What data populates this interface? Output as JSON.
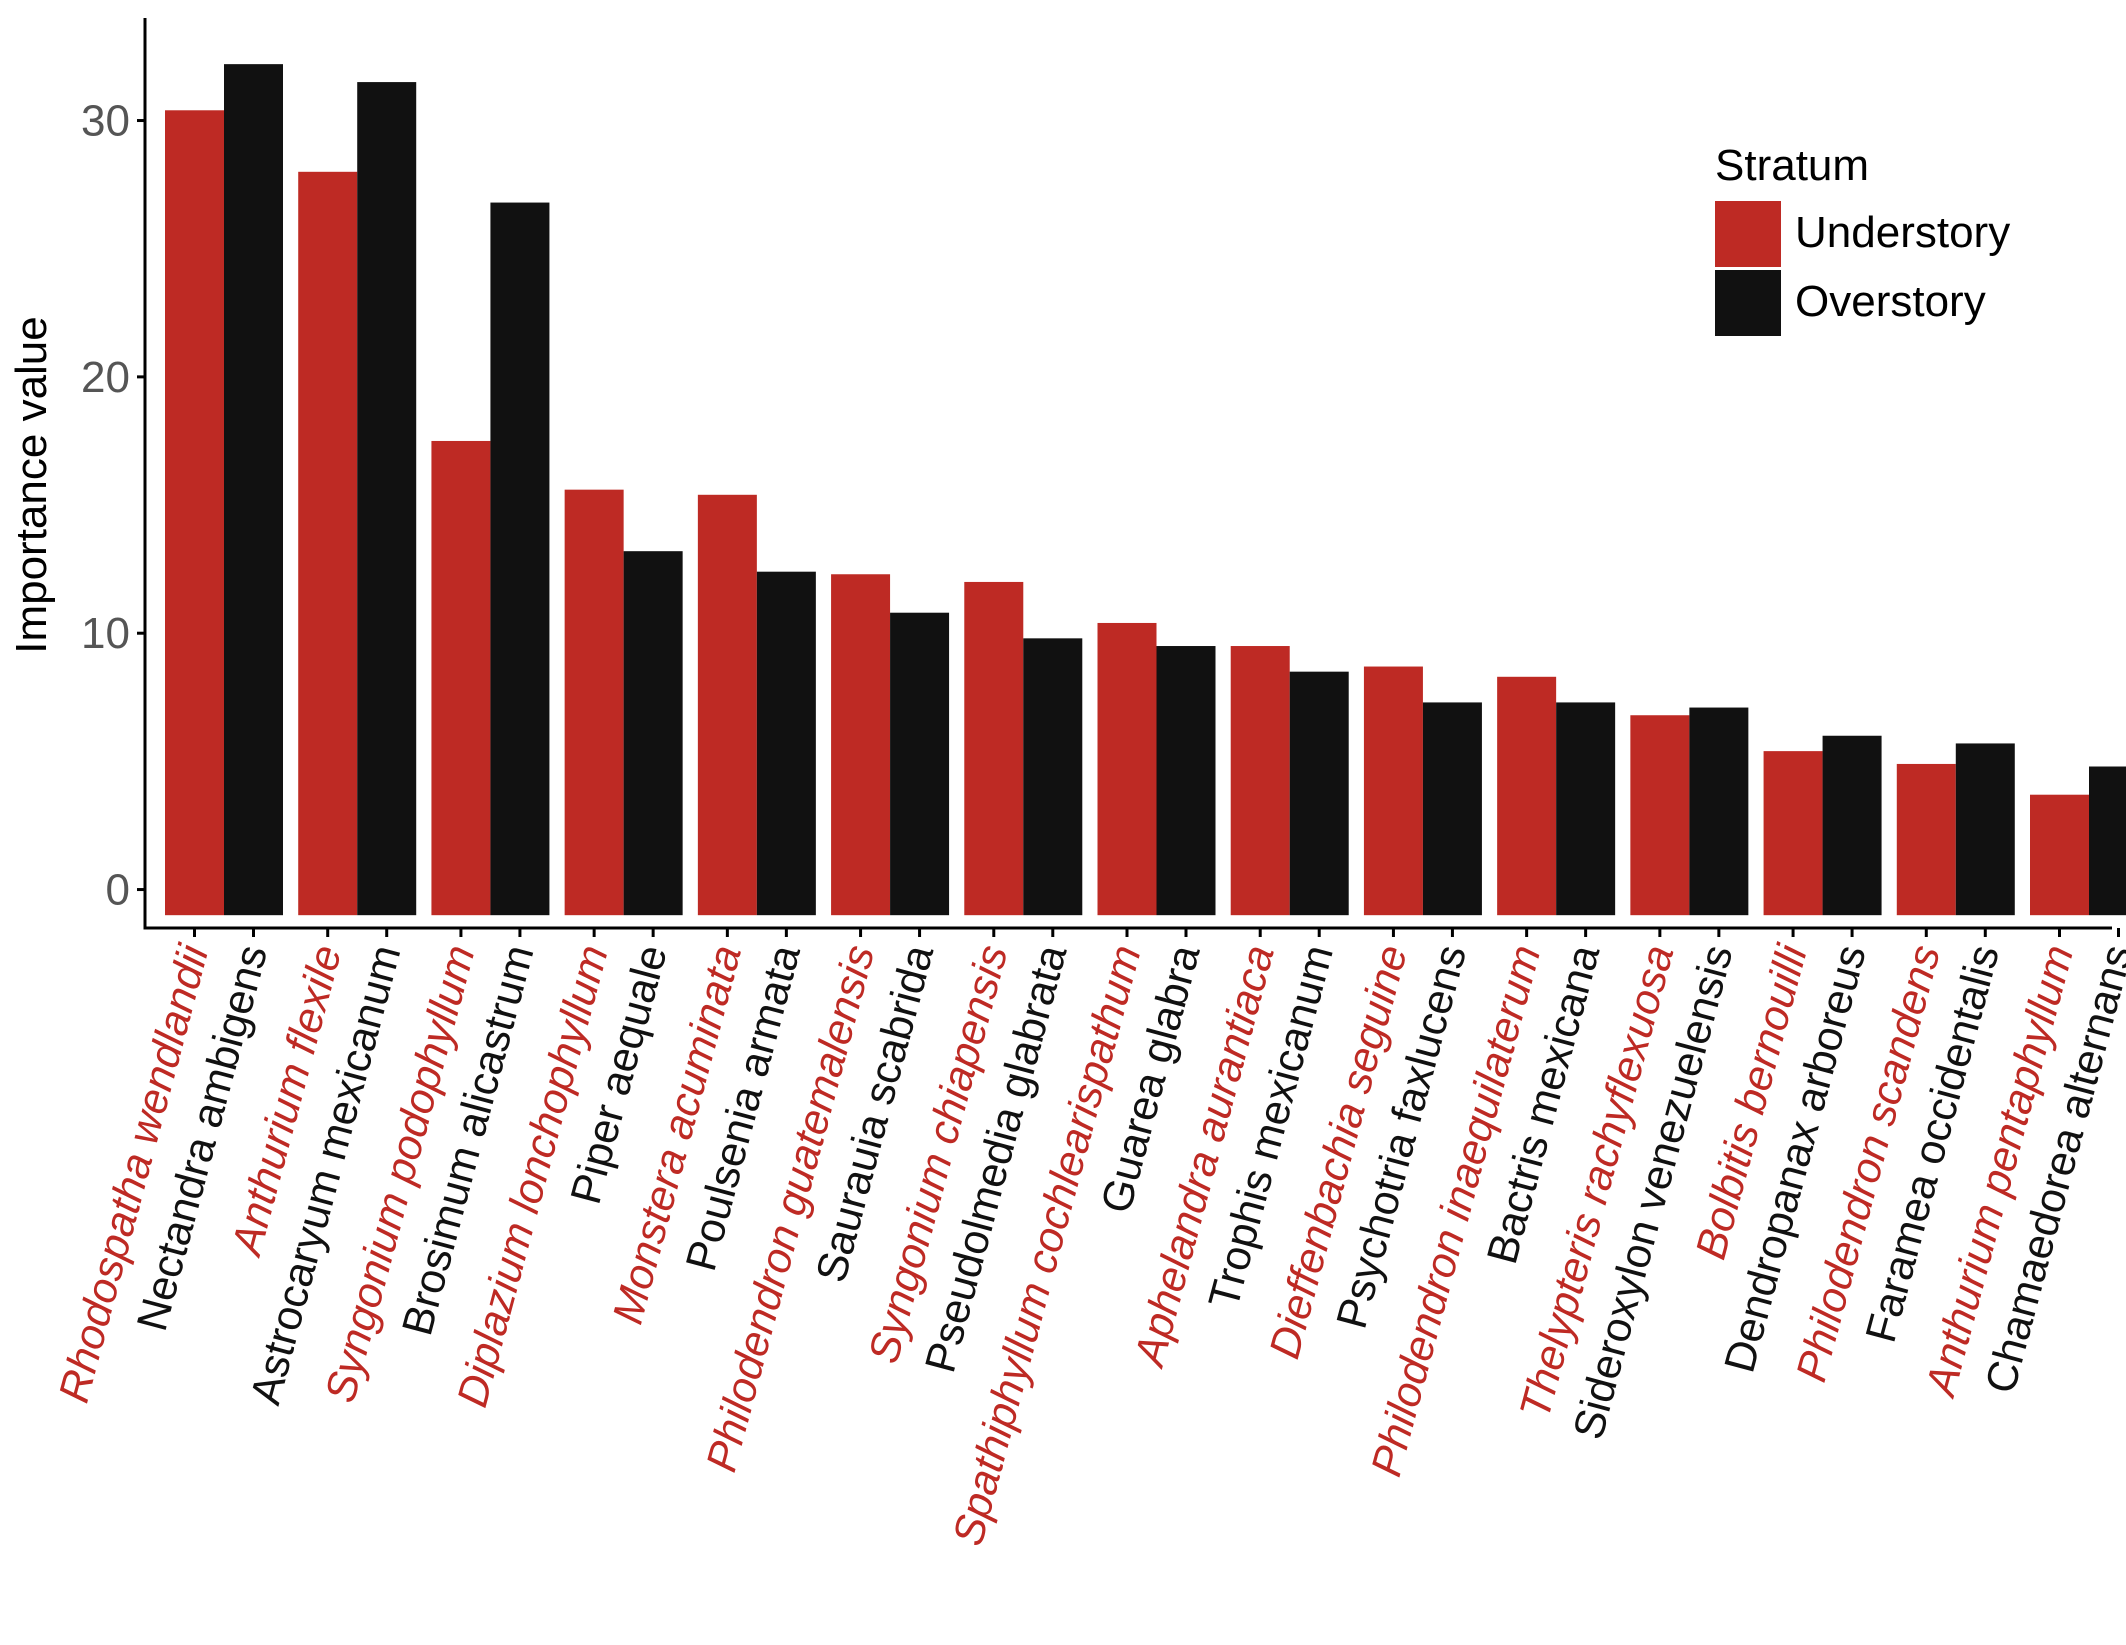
{
  "chart_data": {
    "type": "bar",
    "title": "",
    "xlabel": "",
    "ylabel": "Importance value",
    "ylim": [
      -1.5,
      34
    ],
    "yticks": [
      0,
      10,
      20,
      30
    ],
    "grid": false,
    "legend": {
      "title": "Stratum",
      "placement": "top-right",
      "entries": [
        {
          "name": "Understory",
          "color": "#BE2A24"
        },
        {
          "name": "Overstory",
          "color": "#111111"
        }
      ]
    },
    "groups": [
      {
        "understory": "Rhodospatha wendlandii",
        "overstory": "Nectandra ambigens",
        "values": [
          30.4,
          32.2
        ]
      },
      {
        "understory": "Anthurium flexile",
        "overstory": "Astrocaryum mexicanum",
        "values": [
          28.0,
          31.5
        ]
      },
      {
        "understory": "Syngonium podophyllum",
        "overstory": "Brosimum alicastrum",
        "values": [
          17.5,
          26.8
        ]
      },
      {
        "understory": "Diplazium lonchophyllum",
        "overstory": "Piper aequale",
        "values": [
          15.6,
          13.2
        ]
      },
      {
        "understory": "Monstera acuminata",
        "overstory": "Poulsenia armata",
        "values": [
          15.4,
          12.4
        ]
      },
      {
        "understory": "Philodendron guatemalensis",
        "overstory": "Saurauia scabrida",
        "values": [
          12.3,
          10.8
        ]
      },
      {
        "understory": "Syngonium chiapensis",
        "overstory": "Pseudolmedia glabrata",
        "values": [
          12.0,
          9.8
        ]
      },
      {
        "understory": "Spathiphyllum cochlearispathum",
        "overstory": "Guarea glabra",
        "values": [
          10.4,
          9.5
        ]
      },
      {
        "understory": "Aphelandra aurantiaca",
        "overstory": "Trophis mexicanum",
        "values": [
          9.5,
          8.5
        ]
      },
      {
        "understory": "Dieffenbachia seguine",
        "overstory": "Psychotria faxlucens",
        "values": [
          8.7,
          7.3
        ]
      },
      {
        "understory": "Philodendron inaequilaterum",
        "overstory": "Bactris mexicana",
        "values": [
          8.3,
          7.3
        ]
      },
      {
        "understory": "Thelypteris rachyflexuosa",
        "overstory": "Sideroxylon venezuelensis",
        "values": [
          6.8,
          7.1
        ]
      },
      {
        "understory": "Bolbitis bernouilli",
        "overstory": "Dendropanax arboreus",
        "values": [
          5.4,
          6.0
        ]
      },
      {
        "understory": "Philodendron scandens",
        "overstory": "Faramea occidentalis",
        "values": [
          4.9,
          5.7
        ]
      },
      {
        "understory": "Anthurium pentaphyllum",
        "overstory": "Chamaedorea alternans",
        "values": [
          3.7,
          4.8
        ]
      }
    ]
  }
}
